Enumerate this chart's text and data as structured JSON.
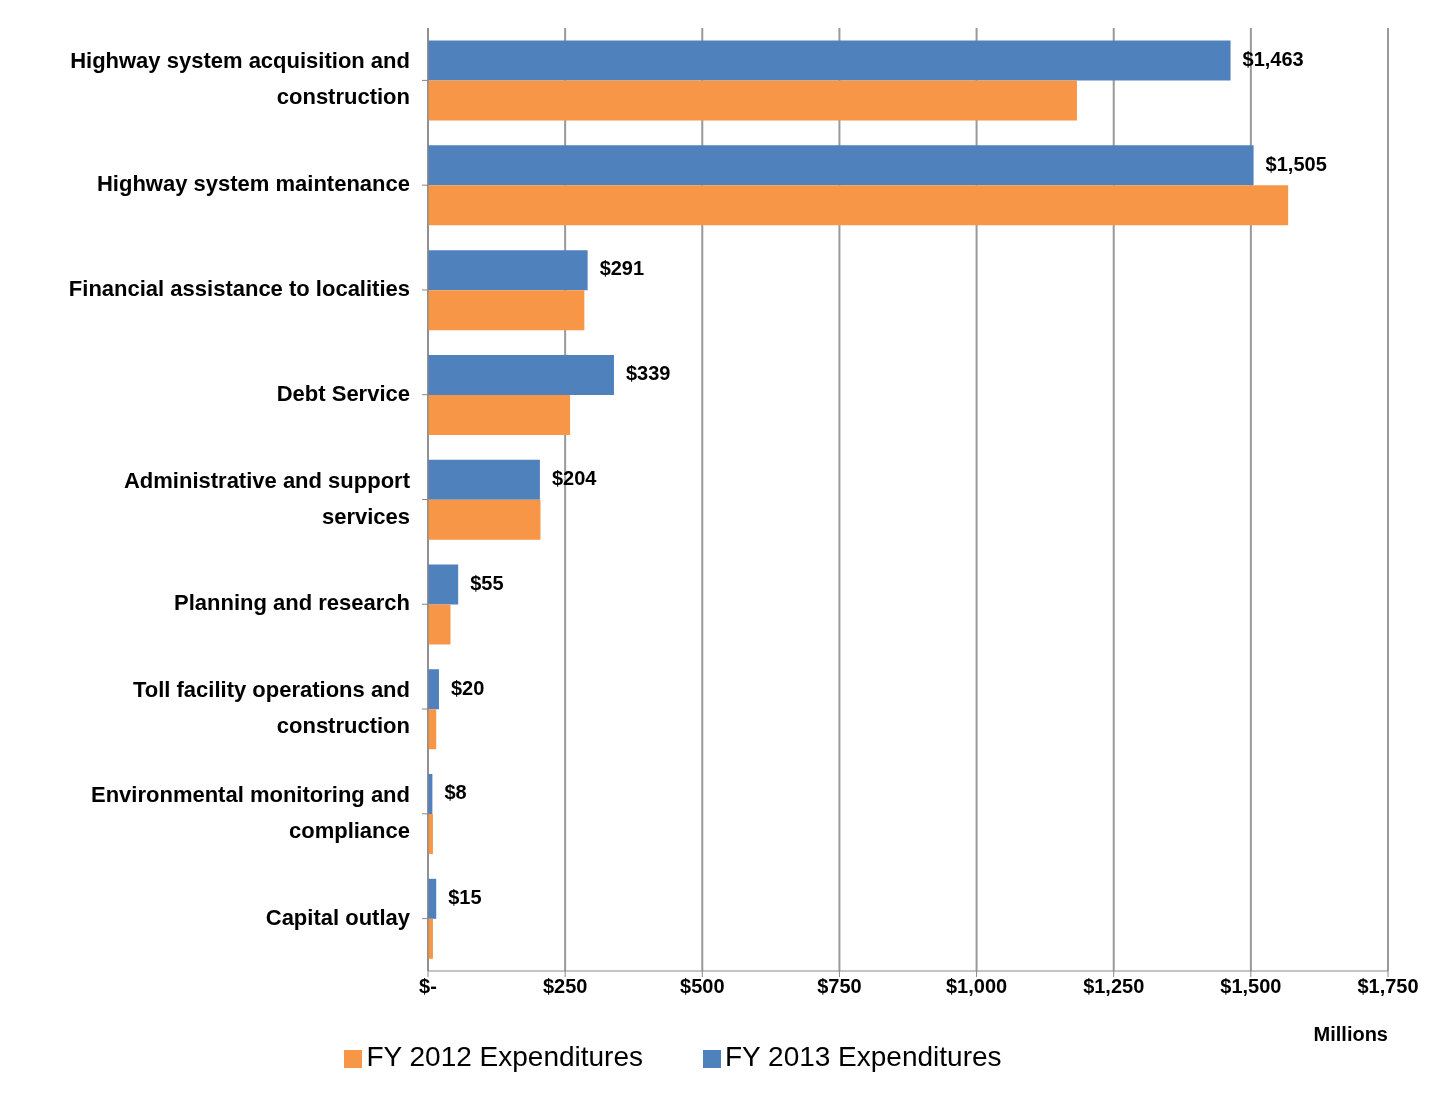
{
  "chart_data": {
    "type": "bar",
    "orientation": "horizontal",
    "categories": [
      "Highway system acquisition and construction",
      "Highway system maintenance",
      "Financial assistance to localities",
      "Debt Service",
      "Administrative and support services",
      "Planning and research",
      "Toll facility operations and construction",
      "Environmental monitoring and compliance",
      "Capital outlay"
    ],
    "series": [
      {
        "name": "FY 2013 Expenditures",
        "color": "#4f81bd",
        "values": [
          1463,
          1505,
          291,
          339,
          204,
          55,
          20,
          8,
          15
        ],
        "value_labels": [
          "$1,463",
          "$1,505",
          "$291",
          "$339",
          "$204",
          "$55",
          "$20",
          "$8",
          "$15"
        ]
      },
      {
        "name": "FY 2012 Expenditures",
        "color": "#f79646",
        "values": [
          1183,
          1568,
          285,
          259,
          205,
          41,
          15,
          9,
          9
        ]
      }
    ],
    "xlabel": "Millions",
    "xlim": [
      0,
      1750
    ],
    "xticks": [
      {
        "value": 0,
        "label": "$-"
      },
      {
        "value": 250,
        "label": "$250"
      },
      {
        "value": 500,
        "label": "$500"
      },
      {
        "value": 750,
        "label": "$750"
      },
      {
        "value": 1000,
        "label": "$1,000"
      },
      {
        "value": 1250,
        "label": "$1,250"
      },
      {
        "value": 1500,
        "label": "$1,500"
      },
      {
        "value": 1750,
        "label": "$1,750"
      }
    ],
    "grid": "x",
    "legend": "bottom"
  }
}
